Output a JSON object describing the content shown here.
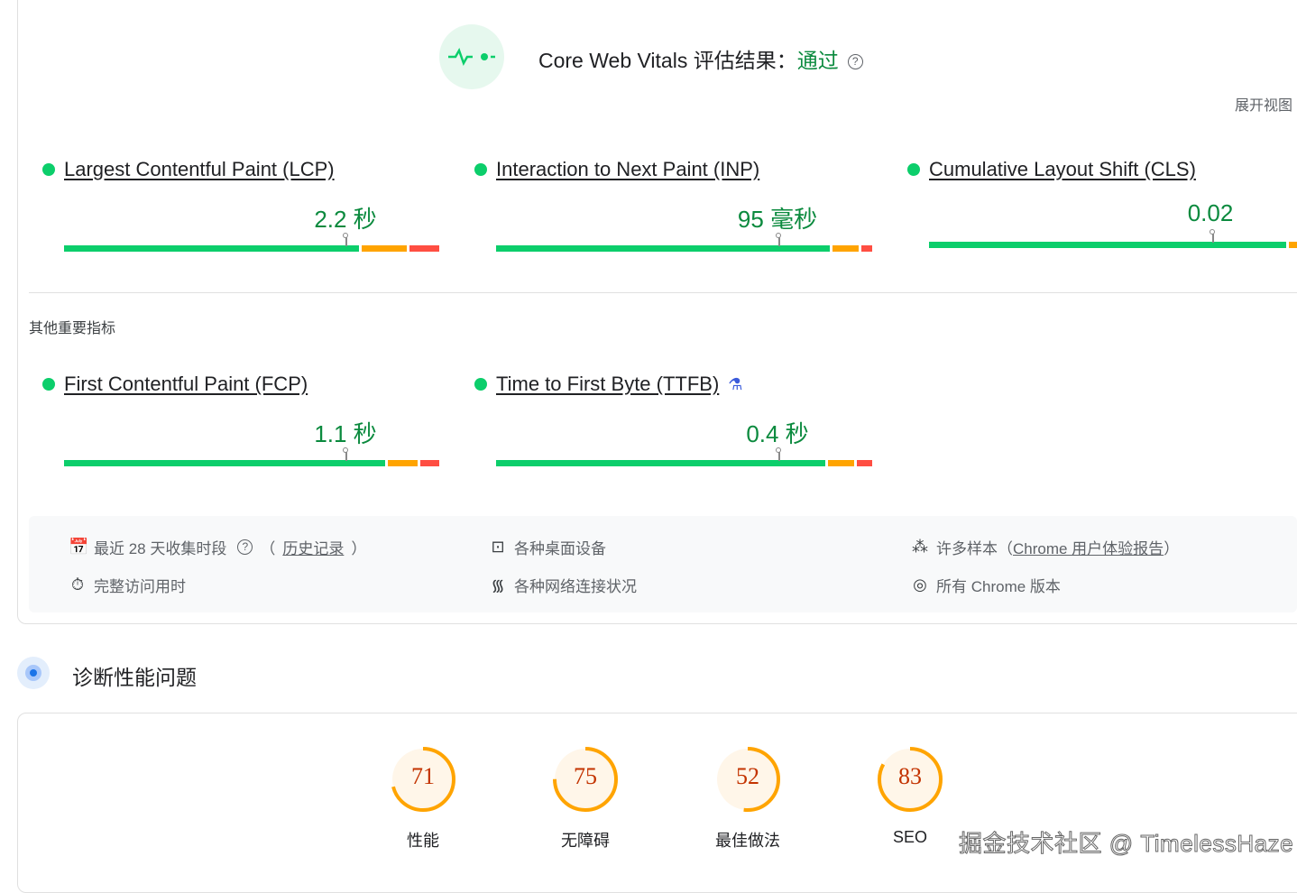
{
  "header": {
    "title": "Core Web Vitals 评估结果：",
    "status": "通过",
    "help_icon": "help-circle-icon",
    "expand_label": "展开视图"
  },
  "colors": {
    "good": "#0cce6b",
    "needs_improvement": "#ffa400",
    "poor": "#ff4e42",
    "pass_text": "#0b8a3e"
  },
  "core_metrics": [
    {
      "name": "Largest Contentful Paint (LCP)",
      "value": "2.2 秒",
      "marker_percentile": 75,
      "distribution_percent": [
        79,
        12,
        8
      ]
    },
    {
      "name": "Interaction to Next Paint (INP)",
      "value": "95 毫秒",
      "marker_percentile": 75,
      "distribution_percent": [
        89,
        7,
        3
      ]
    },
    {
      "name": "Cumulative Layout Shift (CLS)",
      "value": "0.02",
      "marker_percentile": 75,
      "distribution_percent": [
        96,
        3,
        1
      ]
    }
  ],
  "other_title": "其他重要指标",
  "other_metrics": [
    {
      "name": "First Contentful Paint (FCP)",
      "value": "1.1 秒",
      "marker_percentile": 75,
      "distribution_percent": [
        86,
        8,
        5
      ]
    },
    {
      "name": "Time to First Byte (TTFB)",
      "value": "0.4 秒",
      "marker_percentile": 75,
      "distribution_percent": [
        88,
        7,
        4
      ],
      "experimental_icon": "flask-icon"
    }
  ],
  "info": {
    "period": "最近 28 天收集时段",
    "history_link": "历史记录",
    "duration": "完整访问用时",
    "devices": "各种桌面设备",
    "network": "各种网络连接状况",
    "samples": "许多样本（",
    "samples_link": "Chrome 用户体验报告",
    "samples_end": "）",
    "chrome_versions": "所有 Chrome 版本"
  },
  "diagnose": {
    "title": "诊断性能问题"
  },
  "scores": [
    {
      "label": "性能",
      "value": 71
    },
    {
      "label": "无障碍",
      "value": 75
    },
    {
      "label": "最佳做法",
      "value": 52
    },
    {
      "label": "SEO",
      "value": 83
    }
  ],
  "watermark": "掘金技术社区 @ TimelessHaze"
}
